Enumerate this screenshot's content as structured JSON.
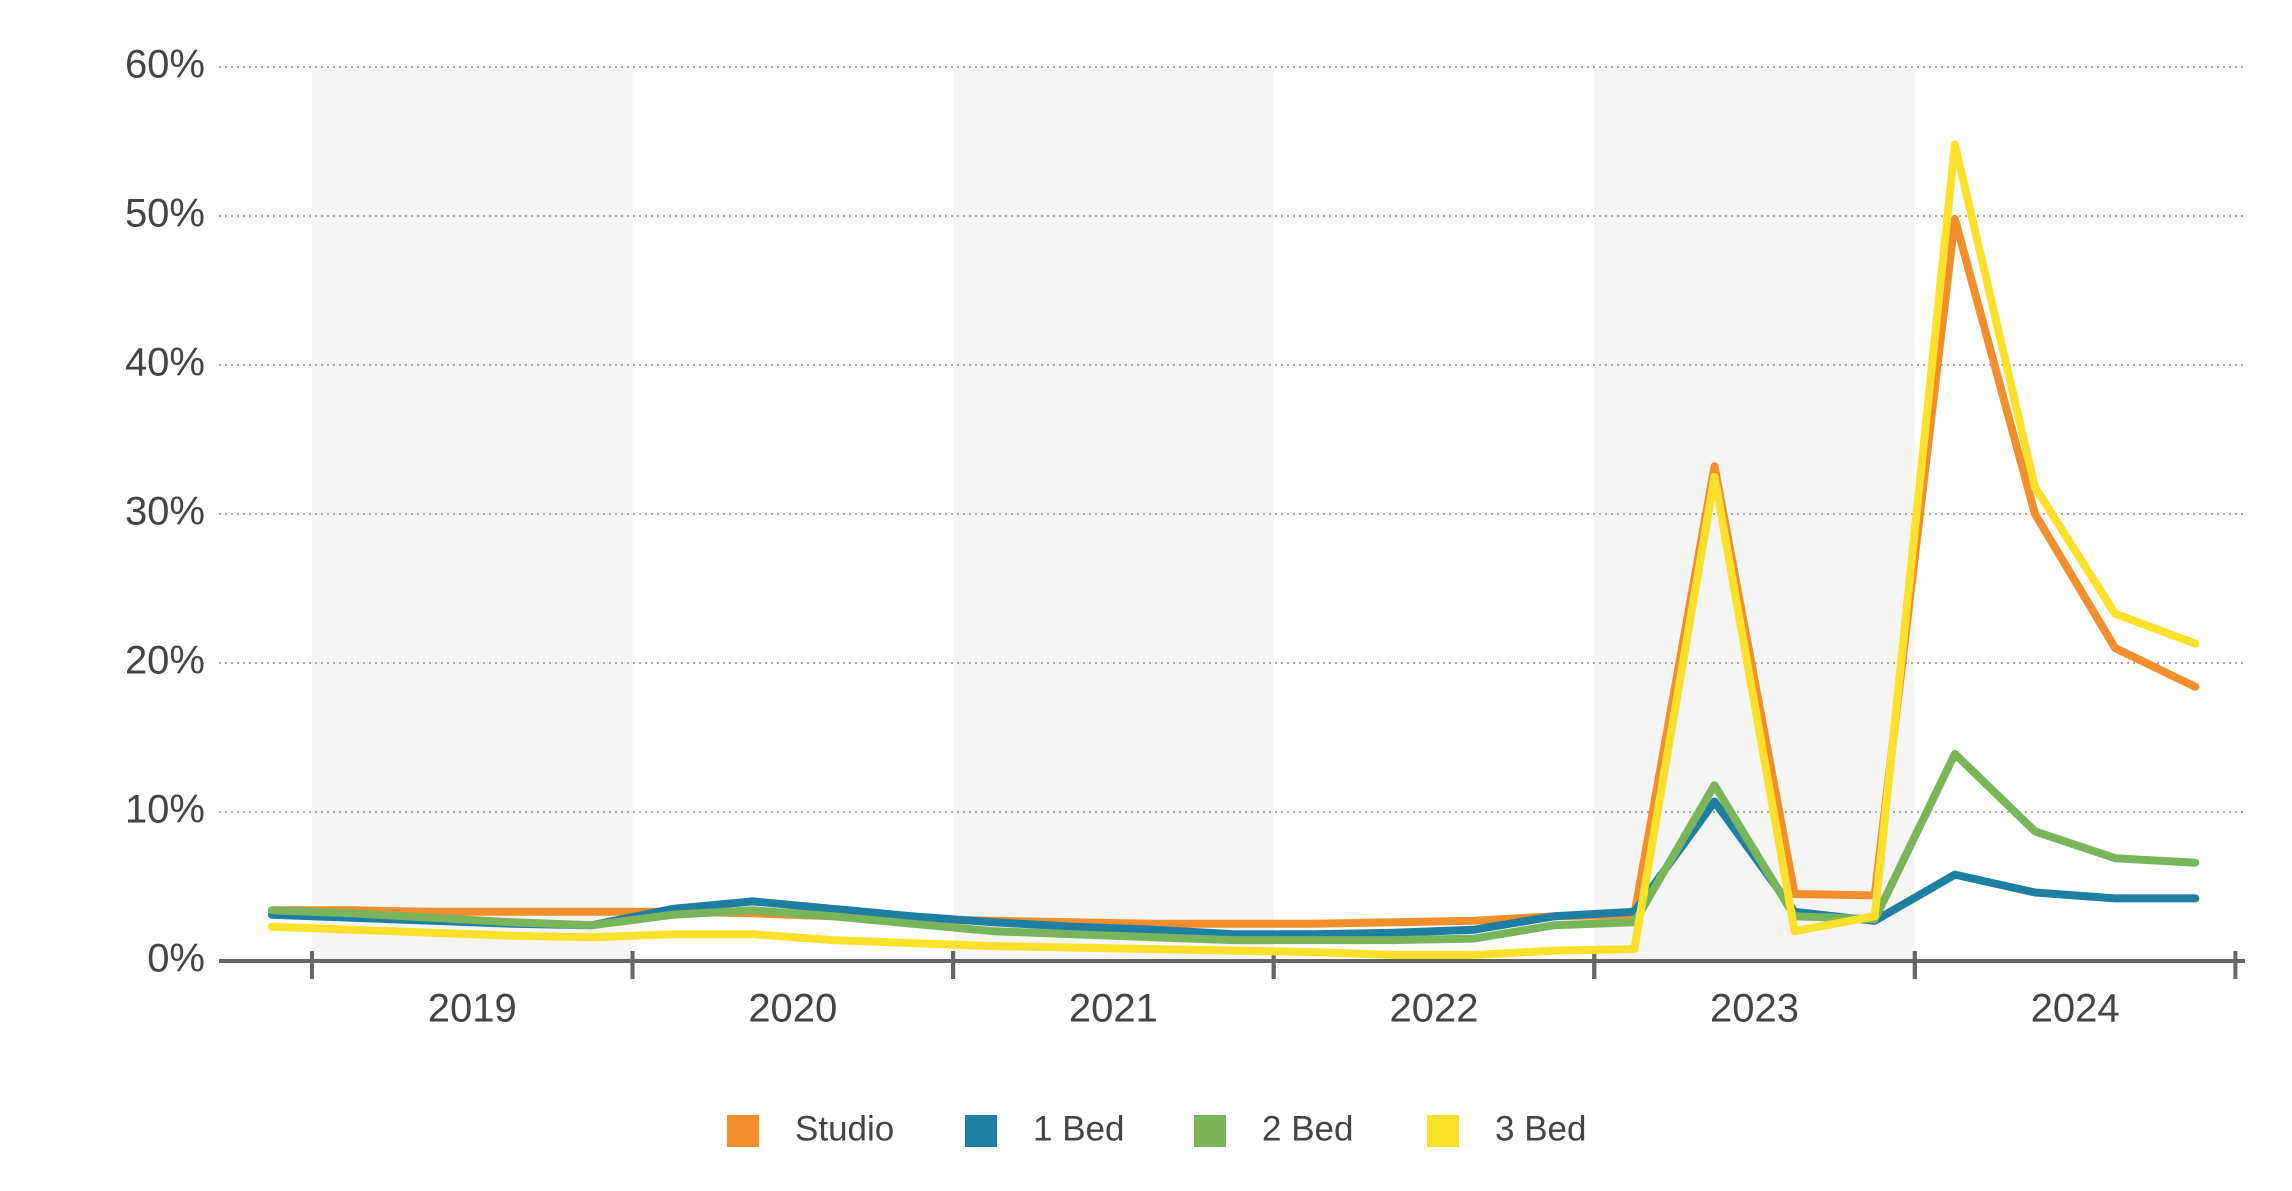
{
  "chart_data": {
    "type": "line",
    "x": [
      2018.875,
      2019.125,
      2019.375,
      2019.625,
      2019.875,
      2020.125,
      2020.375,
      2020.625,
      2020.875,
      2021.125,
      2021.375,
      2021.625,
      2021.875,
      2022.125,
      2022.375,
      2022.625,
      2022.875,
      2023.125,
      2023.375,
      2023.625,
      2023.875,
      2024.125,
      2024.375,
      2024.625,
      2024.875
    ],
    "series": [
      {
        "name": "Studio",
        "color": "#f28e2b",
        "values": [
          3.4,
          3.4,
          3.3,
          3.3,
          3.3,
          3.3,
          3.2,
          3.0,
          2.8,
          2.7,
          2.6,
          2.5,
          2.5,
          2.5,
          2.6,
          2.7,
          3.0,
          3.1,
          33.2,
          4.5,
          4.4,
          49.8,
          30.0,
          21.0,
          18.4
        ]
      },
      {
        "name": "1 Bed",
        "color": "#1f7fa3",
        "values": [
          3.1,
          2.9,
          2.7,
          2.5,
          2.4,
          3.5,
          4.0,
          3.5,
          3.0,
          2.6,
          2.3,
          2.1,
          1.8,
          1.8,
          1.9,
          2.1,
          3.0,
          3.3,
          10.7,
          3.3,
          2.7,
          5.8,
          4.6,
          4.2,
          4.2
        ]
      },
      {
        "name": "2 Bed",
        "color": "#7ab55c",
        "values": [
          3.4,
          3.2,
          2.9,
          2.6,
          2.4,
          3.1,
          3.4,
          3.0,
          2.5,
          2.0,
          1.8,
          1.6,
          1.4,
          1.4,
          1.4,
          1.5,
          2.4,
          2.6,
          11.8,
          3.0,
          2.8,
          13.9,
          8.7,
          6.9,
          6.6
        ]
      },
      {
        "name": "3 Bed",
        "color": "#fbe12c",
        "values": [
          2.3,
          2.1,
          1.9,
          1.7,
          1.6,
          1.8,
          1.8,
          1.4,
          1.2,
          1.0,
          0.9,
          0.8,
          0.7,
          0.6,
          0.4,
          0.4,
          0.7,
          0.8,
          32.5,
          2.0,
          3.0,
          54.8,
          31.8,
          23.3,
          21.3
        ]
      }
    ],
    "xlim": [
      2018.71,
      2025.03
    ],
    "xticks": [
      {
        "value": 2019.5,
        "label": "2019"
      },
      {
        "value": 2020.5,
        "label": "2020"
      },
      {
        "value": 2021.5,
        "label": "2021"
      },
      {
        "value": 2022.5,
        "label": "2022"
      },
      {
        "value": 2023.5,
        "label": "2023"
      },
      {
        "value": 2024.5,
        "label": "2024"
      }
    ],
    "ylim": [
      0,
      60
    ],
    "yticks": [
      {
        "value": 0,
        "label": "0%"
      },
      {
        "value": 10,
        "label": "10%"
      },
      {
        "value": 20,
        "label": "20%"
      },
      {
        "value": 30,
        "label": "30%"
      },
      {
        "value": 40,
        "label": "40%"
      },
      {
        "value": 50,
        "label": "50%"
      },
      {
        "value": 60,
        "label": "60%"
      }
    ],
    "grid": true,
    "legend": "bottom"
  }
}
